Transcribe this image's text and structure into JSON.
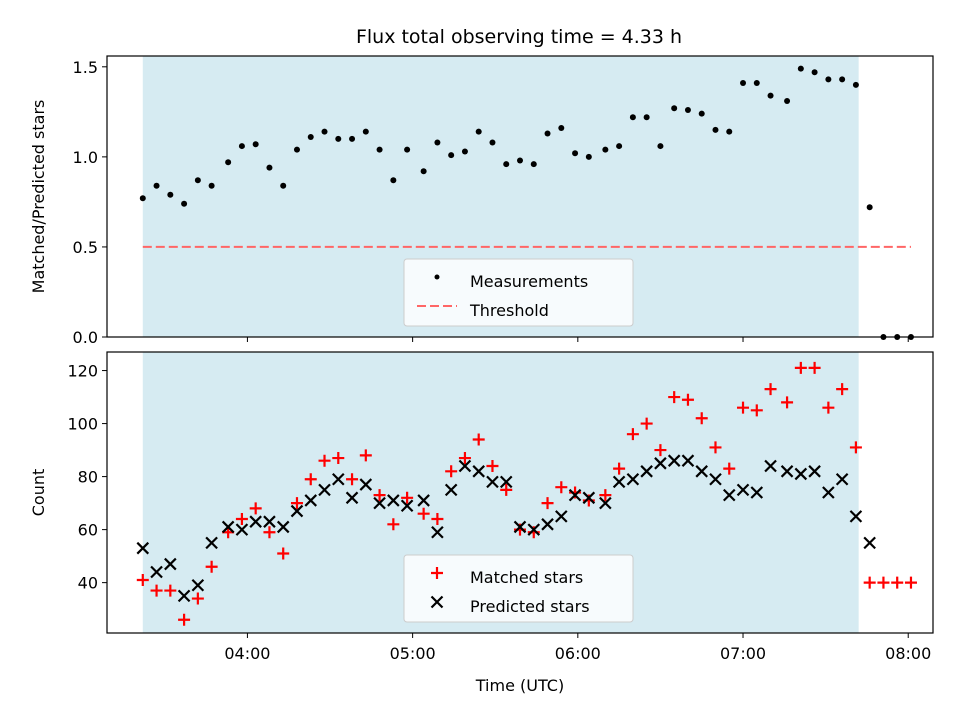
{
  "figure": {
    "title": "Flux total observing time = 4.33 h",
    "xlabel": "Time (UTC)"
  },
  "chart_data": [
    {
      "type": "scatter",
      "ylabel": "Matched/Predicted stars",
      "xlim": [
        "03:09",
        "08:09"
      ],
      "ylim": [
        0,
        1.56
      ],
      "x_tick_labels": [],
      "y_ticks": [
        0.0,
        0.5,
        1.0,
        1.5
      ],
      "y_tick_labels": [
        "0.0",
        "0.5",
        "1.0",
        "1.5"
      ],
      "shaded_interval": [
        "03:22",
        "07:42"
      ],
      "shaded_color": "#add8e6",
      "grid": false,
      "legend_position": "lower-center",
      "series": [
        {
          "name": "Measurements",
          "marker": "dot",
          "color": "#000000",
          "points": [
            [
              "03:22",
              0.77
            ],
            [
              "03:27",
              0.84
            ],
            [
              "03:32",
              0.79
            ],
            [
              "03:37",
              0.74
            ],
            [
              "03:42",
              0.87
            ],
            [
              "03:47",
              0.84
            ],
            [
              "03:53",
              0.97
            ],
            [
              "03:58",
              1.06
            ],
            [
              "04:03",
              1.07
            ],
            [
              "04:08",
              0.94
            ],
            [
              "04:13",
              0.84
            ],
            [
              "04:18",
              1.04
            ],
            [
              "04:23",
              1.11
            ],
            [
              "04:28",
              1.14
            ],
            [
              "04:33",
              1.1
            ],
            [
              "04:38",
              1.1
            ],
            [
              "04:43",
              1.14
            ],
            [
              "04:48",
              1.04
            ],
            [
              "04:53",
              0.87
            ],
            [
              "04:58",
              1.04
            ],
            [
              "05:04",
              0.92
            ],
            [
              "05:09",
              1.08
            ],
            [
              "05:14",
              1.01
            ],
            [
              "05:19",
              1.03
            ],
            [
              "05:24",
              1.14
            ],
            [
              "05:29",
              1.08
            ],
            [
              "05:34",
              0.96
            ],
            [
              "05:39",
              0.98
            ],
            [
              "05:44",
              0.96
            ],
            [
              "05:49",
              1.13
            ],
            [
              "05:54",
              1.16
            ],
            [
              "05:59",
              1.02
            ],
            [
              "06:04",
              1.0
            ],
            [
              "06:10",
              1.04
            ],
            [
              "06:15",
              1.06
            ],
            [
              "06:20",
              1.22
            ],
            [
              "06:25",
              1.22
            ],
            [
              "06:30",
              1.06
            ],
            [
              "06:35",
              1.27
            ],
            [
              "06:40",
              1.26
            ],
            [
              "06:45",
              1.24
            ],
            [
              "06:50",
              1.15
            ],
            [
              "06:55",
              1.14
            ],
            [
              "07:00",
              1.41
            ],
            [
              "07:05",
              1.41
            ],
            [
              "07:10",
              1.34
            ],
            [
              "07:16",
              1.31
            ],
            [
              "07:21",
              1.49
            ],
            [
              "07:26",
              1.47
            ],
            [
              "07:31",
              1.43
            ],
            [
              "07:36",
              1.43
            ],
            [
              "07:41",
              1.4
            ],
            [
              "07:46",
              0.72
            ],
            [
              "07:51",
              0.0
            ],
            [
              "07:56",
              0.0
            ],
            [
              "08:01",
              0.0
            ]
          ]
        },
        {
          "name": "Threshold",
          "marker": "dashed-line",
          "color": "#ff6666",
          "points": [
            [
              "03:22",
              0.5
            ],
            [
              "08:01",
              0.5
            ]
          ]
        }
      ]
    },
    {
      "type": "scatter",
      "ylabel": "Count",
      "xlim": [
        "03:09",
        "08:09"
      ],
      "ylim": [
        21,
        127
      ],
      "x_ticks": [
        "04:00",
        "05:00",
        "06:00",
        "07:00",
        "08:00"
      ],
      "x_tick_labels": [
        "04:00",
        "05:00",
        "06:00",
        "07:00",
        "08:00"
      ],
      "y_ticks": [
        40,
        60,
        80,
        100,
        120
      ],
      "y_tick_labels": [
        "40",
        "60",
        "80",
        "100",
        "120"
      ],
      "shaded_interval": [
        "03:22",
        "07:42"
      ],
      "shaded_color": "#add8e6",
      "grid": false,
      "legend_position": "lower-center",
      "series": [
        {
          "name": "Matched stars",
          "marker": "plus",
          "color": "#ff0000",
          "points": [
            [
              "03:22",
              41
            ],
            [
              "03:27",
              37
            ],
            [
              "03:32",
              37
            ],
            [
              "03:37",
              26
            ],
            [
              "03:42",
              34
            ],
            [
              "03:47",
              46
            ],
            [
              "03:53",
              59
            ],
            [
              "03:58",
              64
            ],
            [
              "04:03",
              68
            ],
            [
              "04:08",
              59
            ],
            [
              "04:13",
              51
            ],
            [
              "04:18",
              70
            ],
            [
              "04:23",
              79
            ],
            [
              "04:28",
              86
            ],
            [
              "04:33",
              87
            ],
            [
              "04:38",
              79
            ],
            [
              "04:43",
              88
            ],
            [
              "04:48",
              73
            ],
            [
              "04:53",
              62
            ],
            [
              "04:58",
              72
            ],
            [
              "05:04",
              66
            ],
            [
              "05:09",
              64
            ],
            [
              "05:14",
              82
            ],
            [
              "05:19",
              87
            ],
            [
              "05:24",
              94
            ],
            [
              "05:29",
              84
            ],
            [
              "05:34",
              75
            ],
            [
              "05:39",
              60
            ],
            [
              "05:44",
              59
            ],
            [
              "05:49",
              70
            ],
            [
              "05:54",
              76
            ],
            [
              "05:59",
              74
            ],
            [
              "06:04",
              71
            ],
            [
              "06:10",
              73
            ],
            [
              "06:15",
              83
            ],
            [
              "06:20",
              96
            ],
            [
              "06:25",
              100
            ],
            [
              "06:30",
              90
            ],
            [
              "06:35",
              110
            ],
            [
              "06:40",
              109
            ],
            [
              "06:45",
              102
            ],
            [
              "06:50",
              91
            ],
            [
              "06:55",
              83
            ],
            [
              "07:00",
              106
            ],
            [
              "07:05",
              105
            ],
            [
              "07:10",
              113
            ],
            [
              "07:16",
              108
            ],
            [
              "07:21",
              121
            ],
            [
              "07:26",
              121
            ],
            [
              "07:31",
              106
            ],
            [
              "07:36",
              113
            ],
            [
              "07:41",
              91
            ],
            [
              "07:46",
              40
            ],
            [
              "07:51",
              40
            ],
            [
              "07:56",
              40
            ],
            [
              "08:01",
              40
            ]
          ]
        },
        {
          "name": "Predicted stars",
          "marker": "x",
          "color": "#000000",
          "points": [
            [
              "03:22",
              53
            ],
            [
              "03:27",
              44
            ],
            [
              "03:32",
              47
            ],
            [
              "03:37",
              35
            ],
            [
              "03:42",
              39
            ],
            [
              "03:47",
              55
            ],
            [
              "03:53",
              61
            ],
            [
              "03:58",
              60
            ],
            [
              "04:03",
              63
            ],
            [
              "04:08",
              63
            ],
            [
              "04:13",
              61
            ],
            [
              "04:18",
              67
            ],
            [
              "04:23",
              71
            ],
            [
              "04:28",
              75
            ],
            [
              "04:33",
              79
            ],
            [
              "04:38",
              72
            ],
            [
              "04:43",
              77
            ],
            [
              "04:48",
              70
            ],
            [
              "04:53",
              71
            ],
            [
              "04:58",
              69
            ],
            [
              "05:04",
              71
            ],
            [
              "05:09",
              59
            ],
            [
              "05:14",
              75
            ],
            [
              "05:19",
              84
            ],
            [
              "05:24",
              82
            ],
            [
              "05:29",
              78
            ],
            [
              "05:34",
              78
            ],
            [
              "05:39",
              61
            ],
            [
              "05:44",
              60
            ],
            [
              "05:49",
              62
            ],
            [
              "05:54",
              65
            ],
            [
              "05:59",
              73
            ],
            [
              "06:04",
              72
            ],
            [
              "06:10",
              70
            ],
            [
              "06:15",
              78
            ],
            [
              "06:20",
              79
            ],
            [
              "06:25",
              82
            ],
            [
              "06:30",
              85
            ],
            [
              "06:35",
              86
            ],
            [
              "06:40",
              86
            ],
            [
              "06:45",
              82
            ],
            [
              "06:50",
              79
            ],
            [
              "06:55",
              73
            ],
            [
              "07:00",
              75
            ],
            [
              "07:05",
              74
            ],
            [
              "07:10",
              84
            ],
            [
              "07:16",
              82
            ],
            [
              "07:21",
              81
            ],
            [
              "07:26",
              82
            ],
            [
              "07:31",
              74
            ],
            [
              "07:36",
              79
            ],
            [
              "07:41",
              65
            ],
            [
              "07:46",
              55
            ]
          ]
        }
      ]
    }
  ]
}
